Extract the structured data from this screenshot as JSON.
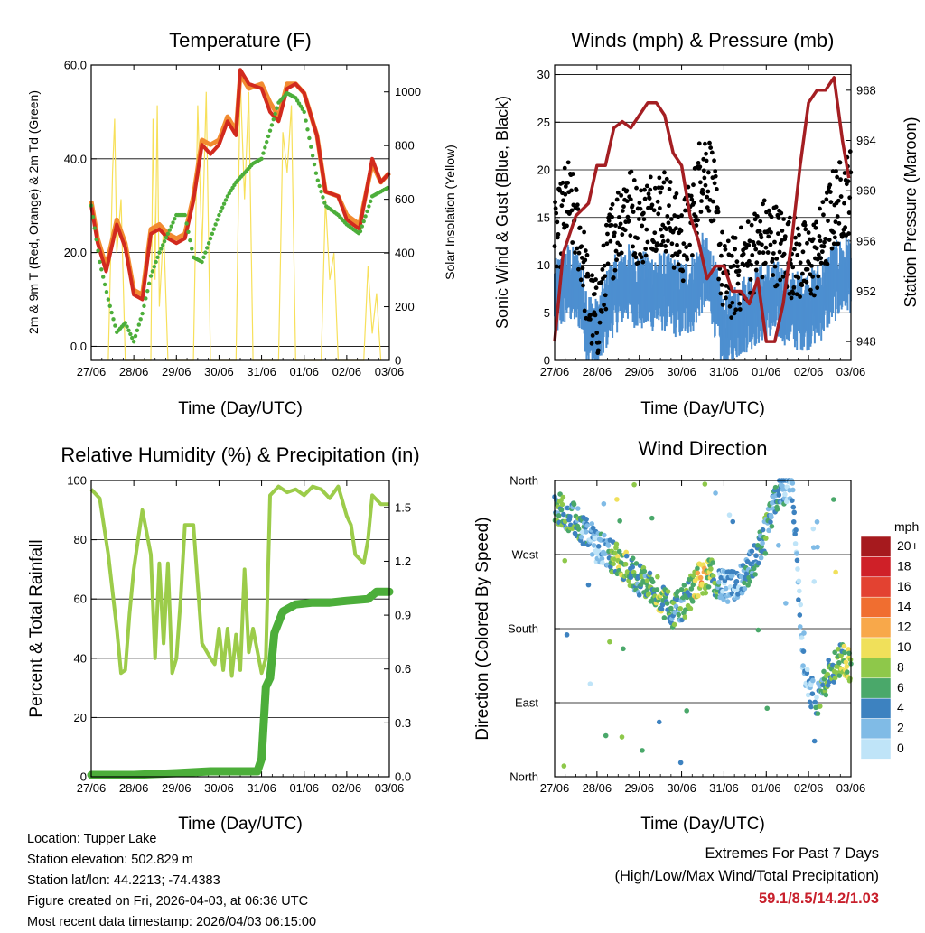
{
  "x_ticks": [
    "27/06",
    "28/06",
    "29/06",
    "30/06",
    "31/06",
    "01/06",
    "02/06",
    "03/06"
  ],
  "chart_data": [
    {
      "type": "line",
      "title": "Temperature (F)",
      "xlabel": "Time (Day/UTC)",
      "ylabel": "2m & 9m T (Red, Orange) & 2m Td (Green)",
      "y2label": "Solar Insolation (Yellow)",
      "ylim": [
        -3,
        60
      ],
      "yticks": [
        "0.0",
        "20.0",
        "40.0",
        "60.0"
      ],
      "y2lim": [
        0,
        1100
      ],
      "y2ticks": [
        "0",
        "200",
        "400",
        "600",
        "800",
        "1000"
      ],
      "x_days": [
        0,
        0.5,
        1,
        1.5,
        2,
        2.5,
        3,
        3.5,
        4,
        4.5,
        5,
        5.5,
        6,
        6.5,
        7
      ],
      "series": [
        {
          "name": "2m T",
          "color": "#d22a1e",
          "x": [
            0,
            0.15,
            0.35,
            0.6,
            0.8,
            1.0,
            1.2,
            1.4,
            1.6,
            1.8,
            2.0,
            2.2,
            2.4,
            2.6,
            2.8,
            3.0,
            3.2,
            3.4,
            3.5,
            3.7,
            4.0,
            4.2,
            4.4,
            4.6,
            4.8,
            5.0,
            5.3,
            5.5,
            5.8,
            6.0,
            6.3,
            6.6,
            6.8,
            7.0
          ],
          "y": [
            30,
            22,
            16,
            26,
            21,
            11,
            10,
            24,
            25,
            23,
            22,
            23,
            31,
            43,
            41,
            43,
            48,
            45,
            59,
            56,
            55,
            50,
            48,
            55,
            56,
            54,
            45,
            33,
            32,
            27,
            25,
            40,
            35,
            37
          ]
        },
        {
          "name": "9m T",
          "color": "#f28b30",
          "x": [
            0,
            0.15,
            0.35,
            0.6,
            0.8,
            1.0,
            1.2,
            1.4,
            1.6,
            1.8,
            2.0,
            2.2,
            2.4,
            2.6,
            2.8,
            3.0,
            3.2,
            3.4,
            3.5,
            3.7,
            4.0,
            4.2,
            4.4,
            4.6,
            4.8,
            5.0,
            5.3,
            5.5,
            5.8,
            6.0,
            6.3,
            6.6,
            6.8,
            7.0
          ],
          "y": [
            31,
            23,
            17,
            27,
            22,
            12,
            11,
            25,
            26,
            24,
            23,
            24,
            32,
            44,
            43,
            44,
            49,
            46,
            58,
            55,
            56,
            52,
            49,
            56,
            56,
            54,
            45,
            33,
            32,
            28,
            26,
            39,
            35,
            37
          ]
        },
        {
          "name": "2m Td",
          "color": "#4cae3a",
          "x": [
            0,
            0.2,
            0.4,
            0.6,
            0.8,
            1.0,
            1.2,
            1.4,
            1.6,
            1.8,
            2.0,
            2.2,
            2.4,
            2.6,
            2.8,
            3.0,
            3.2,
            3.4,
            3.6,
            3.8,
            4.0,
            4.2,
            4.4,
            4.6,
            4.8,
            5.0,
            5.3,
            5.5,
            5.8,
            6.0,
            6.3,
            6.6,
            7.0
          ],
          "y": [
            30,
            18,
            10,
            3,
            5,
            1,
            7,
            15,
            20,
            24,
            28,
            28,
            19,
            18,
            23,
            28,
            32,
            35,
            37,
            39,
            40,
            46,
            52,
            54,
            53,
            50,
            36,
            30,
            28,
            26,
            24,
            32,
            34
          ]
        },
        {
          "name": "Solar Insolation",
          "color": "#f7e05a",
          "axis": "y2",
          "x": [
            0.4,
            0.5,
            0.55,
            0.6,
            0.7,
            0.8,
            1.4,
            1.45,
            1.5,
            1.55,
            1.6,
            1.7,
            1.8,
            2.4,
            2.5,
            2.6,
            2.7,
            2.8,
            3.4,
            3.5,
            3.6,
            3.7,
            3.8,
            4.4,
            4.5,
            4.6,
            4.7,
            4.8,
            5.4,
            5.5,
            5.6,
            5.7,
            5.8,
            6.4,
            6.5,
            6.6,
            6.7,
            6.8
          ],
          "y": [
            0,
            700,
            900,
            400,
            600,
            0,
            0,
            900,
            300,
            950,
            200,
            500,
            0,
            0,
            950,
            400,
            1000,
            0,
            0,
            1050,
            600,
            1000,
            0,
            0,
            850,
            700,
            950,
            0,
            0,
            600,
            300,
            400,
            0,
            0,
            350,
            100,
            250,
            0
          ]
        }
      ]
    },
    {
      "type": "scatter",
      "title": "Winds (mph) & Pressure (mb)",
      "xlabel": "Time (Day/UTC)",
      "ylabel": "Sonic Wind & Gust (Blue, Black)",
      "y2label": "Station Pressure (Maroon)",
      "ylim": [
        0,
        31
      ],
      "yticks": [
        "0",
        "5",
        "10",
        "15",
        "20",
        "25",
        "30"
      ],
      "y2lim": [
        946.5,
        970
      ],
      "y2ticks": [
        "948",
        "952",
        "956",
        "960",
        "964",
        "968"
      ],
      "series": [
        {
          "name": "Wind",
          "color": "#4d8fd0"
        },
        {
          "name": "Gust",
          "color": "#000000"
        },
        {
          "name": "Station Pressure",
          "color": "#a41e22",
          "axis": "y2",
          "x": [
            0,
            0.2,
            0.5,
            0.8,
            1.0,
            1.2,
            1.4,
            1.6,
            1.8,
            2.0,
            2.2,
            2.4,
            2.6,
            2.8,
            3.0,
            3.2,
            3.4,
            3.6,
            3.8,
            4.0,
            4.2,
            4.4,
            4.6,
            4.8,
            5.0,
            5.2,
            5.4,
            5.6,
            5.8,
            6.0,
            6.2,
            6.4,
            6.6,
            6.8,
            6.95
          ],
          "y": [
            948,
            955,
            958,
            959,
            962,
            962,
            965,
            965.5,
            965,
            966,
            967,
            967,
            966,
            963,
            962,
            958,
            956,
            953,
            954,
            954,
            952,
            952,
            951,
            953,
            948,
            948,
            951,
            956,
            962,
            967,
            968,
            968,
            969,
            964,
            961
          ]
        }
      ]
    },
    {
      "type": "line",
      "title": "Relative Humidity (%) & Precipitation (in)",
      "xlabel": "Time (Day/UTC)",
      "ylabel": "Percent & Total Rainfall",
      "ylim": [
        0,
        100
      ],
      "yticks": [
        "0",
        "20",
        "40",
        "60",
        "80",
        "100"
      ],
      "y2lim": [
        0,
        1.65
      ],
      "y2ticks": [
        "0.0",
        "0.3",
        "0.6",
        "0.9",
        "1.2",
        "1.5"
      ],
      "series": [
        {
          "name": "Relative Humidity",
          "color": "#9ccc4a",
          "x": [
            0,
            0.2,
            0.4,
            0.6,
            0.7,
            0.8,
            0.9,
            1.0,
            1.2,
            1.4,
            1.5,
            1.6,
            1.7,
            1.8,
            1.9,
            2.0,
            2.1,
            2.2,
            2.4,
            2.6,
            2.8,
            2.9,
            3.0,
            3.1,
            3.2,
            3.3,
            3.4,
            3.5,
            3.6,
            3.7,
            3.8,
            4.0,
            4.1,
            4.2,
            4.4,
            4.6,
            4.8,
            5.0,
            5.2,
            5.4,
            5.6,
            5.8,
            6.0,
            6.1,
            6.2,
            6.4,
            6.5,
            6.6,
            6.8,
            7.0
          ],
          "y": [
            97,
            94,
            75,
            50,
            35,
            36,
            55,
            70,
            90,
            75,
            40,
            72,
            45,
            72,
            35,
            40,
            60,
            85,
            85,
            45,
            40,
            38,
            50,
            36,
            50,
            34,
            48,
            36,
            70,
            42,
            50,
            35,
            40,
            95,
            98,
            96,
            97,
            95,
            98,
            97,
            94,
            98,
            88,
            85,
            75,
            72,
            80,
            95,
            92,
            92
          ]
        },
        {
          "name": "Total Precipitation",
          "color": "#4cae3a",
          "axis": "y2",
          "x": [
            0,
            1,
            2,
            2.8,
            3.5,
            3.9,
            4.0,
            4.1,
            4.2,
            4.3,
            4.5,
            4.8,
            5.2,
            5.6,
            6.0,
            6.5,
            6.7,
            7.0
          ],
          "y": [
            0.01,
            0.01,
            0.02,
            0.03,
            0.03,
            0.03,
            0.1,
            0.5,
            0.55,
            0.8,
            0.92,
            0.96,
            0.97,
            0.97,
            0.98,
            0.99,
            1.03,
            1.03
          ]
        }
      ]
    },
    {
      "type": "scatter",
      "title": "Wind Direction",
      "xlabel": "Time (Day/UTC)",
      "ylabel": "Direction (Colored By Speed)",
      "ylim": [
        0,
        360
      ],
      "yticks": [
        "North",
        "East",
        "South",
        "West",
        "North"
      ],
      "colorbar_title": "mph",
      "colorbar_labels": [
        "20+",
        "18",
        "16",
        "14",
        "12",
        "10",
        "8",
        "6",
        "4",
        "2",
        "0"
      ],
      "colorbar_colors": [
        "#a61a1e",
        "#cf2028",
        "#e34231",
        "#f06e30",
        "#f8a84a",
        "#f0e05a",
        "#8ec84a",
        "#4aa86a",
        "#3d82c0",
        "#80bbe6",
        "#bfe4f8"
      ]
    }
  ],
  "footer": {
    "location": "Location: Tupper Lake",
    "elevation": "Station elevation: 502.829 m",
    "latlon": "Station lat/lon: 44.2213; -74.4383",
    "created": "Figure created on Fri, 2026-04-03, at 06:36 UTC",
    "recent": "Most recent data timestamp: 2026/04/03 06:15:00",
    "extremes_title": "Extremes For Past 7 Days",
    "extremes_desc": "(High/Low/Max Wind/Total Precipitation)",
    "extremes_values": "59.1/8.5/14.2/1.03"
  },
  "colors": {
    "grid": "#000000",
    "background": "#ffffff",
    "extremes": "#c8202c"
  }
}
